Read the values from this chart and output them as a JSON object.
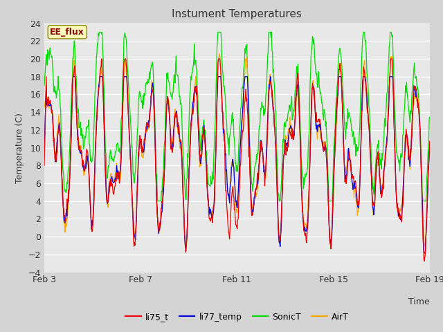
{
  "title": "Instument Temperatures",
  "ylabel": "Temperature (C)",
  "xlabel": "Time",
  "ylim": [
    -4,
    24
  ],
  "yticks": [
    -4,
    -2,
    0,
    2,
    4,
    6,
    8,
    10,
    12,
    14,
    16,
    18,
    20,
    22,
    24
  ],
  "annotation": "EE_flux",
  "fig_bg_color": "#d4d4d4",
  "plot_bg_color": "#e8e8e8",
  "line_colors": {
    "li75_t": "#ee0000",
    "li77_temp": "#0000dd",
    "SonicT": "#00dd00",
    "AirT": "#ffaa00"
  },
  "legend_entries": [
    "li75_t",
    "li77_temp",
    "SonicT",
    "AirT"
  ],
  "xtick_labels": [
    "Feb 3",
    "Feb 7",
    "Feb 11",
    "Feb 15",
    "Feb 19"
  ],
  "xtick_positions": [
    3,
    7,
    11,
    15,
    19
  ],
  "date_start": 3,
  "date_end": 19,
  "n_points": 800,
  "figsize": [
    6.4,
    4.8
  ],
  "dpi": 100
}
